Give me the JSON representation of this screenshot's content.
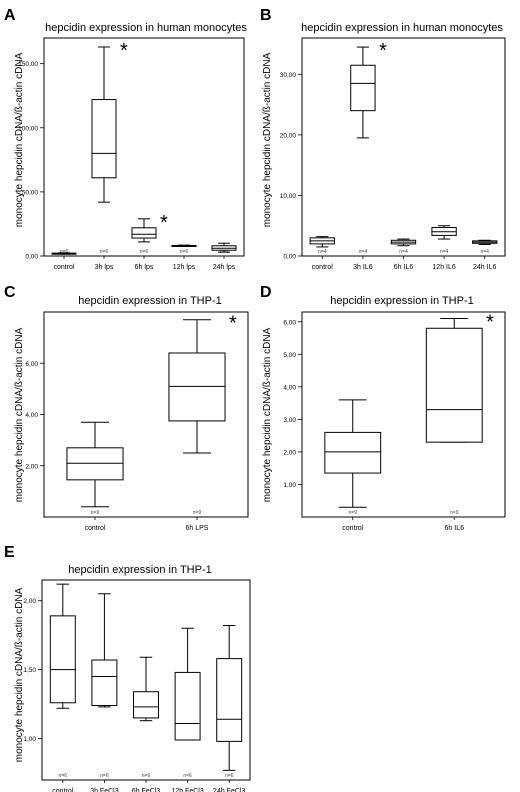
{
  "colors": {
    "background": "#ffffff",
    "ink": "#000000",
    "grid_ink": "#333333"
  },
  "chart_data": [
    {
      "panel": "A",
      "type": "boxplot",
      "title": "hepcidin expression in human monocytes",
      "ylabel": "monocyte hepcidin cDNA/ß-actin cDNA",
      "xlabel": "",
      "ylim": [
        0,
        170
      ],
      "yticks": [
        0,
        50,
        100,
        150
      ],
      "ytick_labels": [
        "0,00",
        "50,00",
        "100,00",
        "150,00"
      ],
      "categories": [
        "control",
        "3h lps",
        "6h lps",
        "12h lps",
        "24h lps"
      ],
      "n_labels": [
        "n=6",
        "n=6",
        "n=6",
        "n=6",
        "n=6"
      ],
      "boxes": [
        {
          "min": 1.5,
          "q1": 1.8,
          "median": 2.0,
          "q3": 2.2,
          "max": 2.5
        },
        {
          "min": 42,
          "q1": 61,
          "median": 80,
          "q3": 122,
          "max": 163
        },
        {
          "min": 11,
          "q1": 14,
          "median": 17,
          "q3": 22,
          "max": 29
        },
        {
          "min": 7.5,
          "q1": 7.8,
          "median": 8.0,
          "q3": 8.2,
          "max": 8.5
        },
        {
          "min": 3,
          "q1": 4.5,
          "median": 6,
          "q3": 8,
          "max": 10
        }
      ],
      "significance": [
        {
          "category": "3h lps",
          "label": "*"
        },
        {
          "category": "6h lps",
          "label": "*"
        }
      ],
      "grid": false
    },
    {
      "panel": "B",
      "type": "boxplot",
      "title": "hepcidin expression in human monocytes",
      "ylabel": "monocyte hepcidin cDNA/ß-actin cDNA",
      "xlabel": "",
      "ylim": [
        0,
        36
      ],
      "yticks": [
        0,
        10,
        20,
        30
      ],
      "ytick_labels": [
        "0,00",
        "10,00",
        "20,00",
        "30,00"
      ],
      "categories": [
        "control",
        "3h IL6",
        "6h IL6",
        "12h IL6",
        "24h IL6"
      ],
      "n_labels": [
        "n=4",
        "n=4",
        "n=4",
        "n=4",
        "n=4"
      ],
      "boxes": [
        {
          "min": 1.5,
          "q1": 2.0,
          "median": 2.5,
          "q3": 3.0,
          "max": 3.2
        },
        {
          "min": 19.5,
          "q1": 24,
          "median": 28.5,
          "q3": 31.5,
          "max": 34.5
        },
        {
          "min": 1.7,
          "q1": 2.0,
          "median": 2.3,
          "q3": 2.6,
          "max": 2.8
        },
        {
          "min": 2.8,
          "q1": 3.4,
          "median": 4.0,
          "q3": 4.7,
          "max": 5.0
        },
        {
          "min": 1.9,
          "q1": 2.1,
          "median": 2.3,
          "q3": 2.5,
          "max": 2.6
        }
      ],
      "significance": [
        {
          "category": "3h IL6",
          "label": "*"
        }
      ],
      "grid": false
    },
    {
      "panel": "C",
      "type": "boxplot",
      "title": "hepcidin expression in THP-1",
      "ylabel": "monocyte hepcidin cDNA/ß-actin cDNA",
      "xlabel": "",
      "ylim": [
        0,
        8
      ],
      "yticks": [
        2,
        4,
        6
      ],
      "ytick_labels": [
        "2,00",
        "4,00",
        "6,00"
      ],
      "categories": [
        "control",
        "6h LPS"
      ],
      "n_labels": [
        "n=9",
        "n=9"
      ],
      "boxes": [
        {
          "min": 0.4,
          "q1": 1.45,
          "median": 2.1,
          "q3": 2.7,
          "max": 3.7
        },
        {
          "min": 2.5,
          "q1": 3.75,
          "median": 5.1,
          "q3": 6.4,
          "max": 7.7
        }
      ],
      "significance": [
        {
          "category": "6h LPS",
          "label": "*"
        }
      ],
      "grid": false
    },
    {
      "panel": "D",
      "type": "boxplot",
      "title": "hepcidin expression in THP-1",
      "ylabel": "monocyte hepcidin cDNA/ß-actin cDNA",
      "xlabel": "",
      "ylim": [
        0,
        6.3
      ],
      "yticks": [
        1,
        2,
        3,
        4,
        5,
        6
      ],
      "ytick_labels": [
        "1,00",
        "2,00",
        "3,00",
        "4,00",
        "5,00",
        "6,00"
      ],
      "categories": [
        "control",
        "6h IL6"
      ],
      "n_labels": [
        "n=9",
        "n=9"
      ],
      "boxes": [
        {
          "min": 0.3,
          "q1": 1.35,
          "median": 2.0,
          "q3": 2.6,
          "max": 3.6
        },
        {
          "min": 2.3,
          "q1": 2.3,
          "median": 3.3,
          "q3": 5.8,
          "max": 6.1
        }
      ],
      "significance": [
        {
          "category": "6h IL6",
          "label": "*"
        }
      ],
      "grid": false
    },
    {
      "panel": "E",
      "type": "boxplot",
      "title": "hepcidin expression in THP-1",
      "ylabel": "monocyte hepcidin cDNA/ß-actin cDNA",
      "xlabel": "",
      "ylim": [
        0.7,
        2.15
      ],
      "yticks": [
        1.0,
        1.5,
        2.0
      ],
      "ytick_labels": [
        "1,00",
        "1,50",
        "2,00"
      ],
      "categories": [
        "control",
        "3h FeCl3",
        "6h FeCl3",
        "12h FeCl3",
        "24h FeCl3"
      ],
      "n_labels": [
        "n=6",
        "n=6",
        "n=6",
        "n=6",
        "n=6"
      ],
      "boxes": [
        {
          "min": 1.22,
          "q1": 1.26,
          "median": 1.5,
          "q3": 1.89,
          "max": 2.12
        },
        {
          "min": 1.23,
          "q1": 1.24,
          "median": 1.45,
          "q3": 1.57,
          "max": 2.05
        },
        {
          "min": 1.13,
          "q1": 1.15,
          "median": 1.23,
          "q3": 1.34,
          "max": 1.59
        },
        {
          "min": 0.99,
          "q1": 0.99,
          "median": 1.11,
          "q3": 1.48,
          "max": 1.8
        },
        {
          "min": 0.77,
          "q1": 0.98,
          "median": 1.14,
          "q3": 1.58,
          "max": 1.82
        }
      ],
      "significance": [],
      "grid": false
    }
  ]
}
